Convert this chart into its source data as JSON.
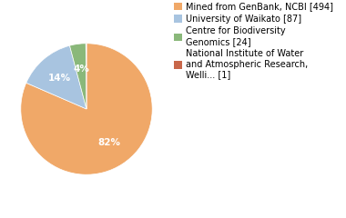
{
  "slices": [
    494,
    87,
    24,
    1
  ],
  "labels": [
    "Mined from GenBank, NCBI [494]",
    "University of Waikato [87]",
    "Centre for Biodiversity\nGenomics [24]",
    "National Institute of Water\nand Atmospheric Research,\nWelli... [1]"
  ],
  "colors": [
    "#f0a868",
    "#a8c4e0",
    "#8ab87a",
    "#c8674a"
  ],
  "startangle": 90,
  "legend_fontsize": 7.0,
  "autopct_fontsize": 7.5,
  "background_color": "#ffffff"
}
